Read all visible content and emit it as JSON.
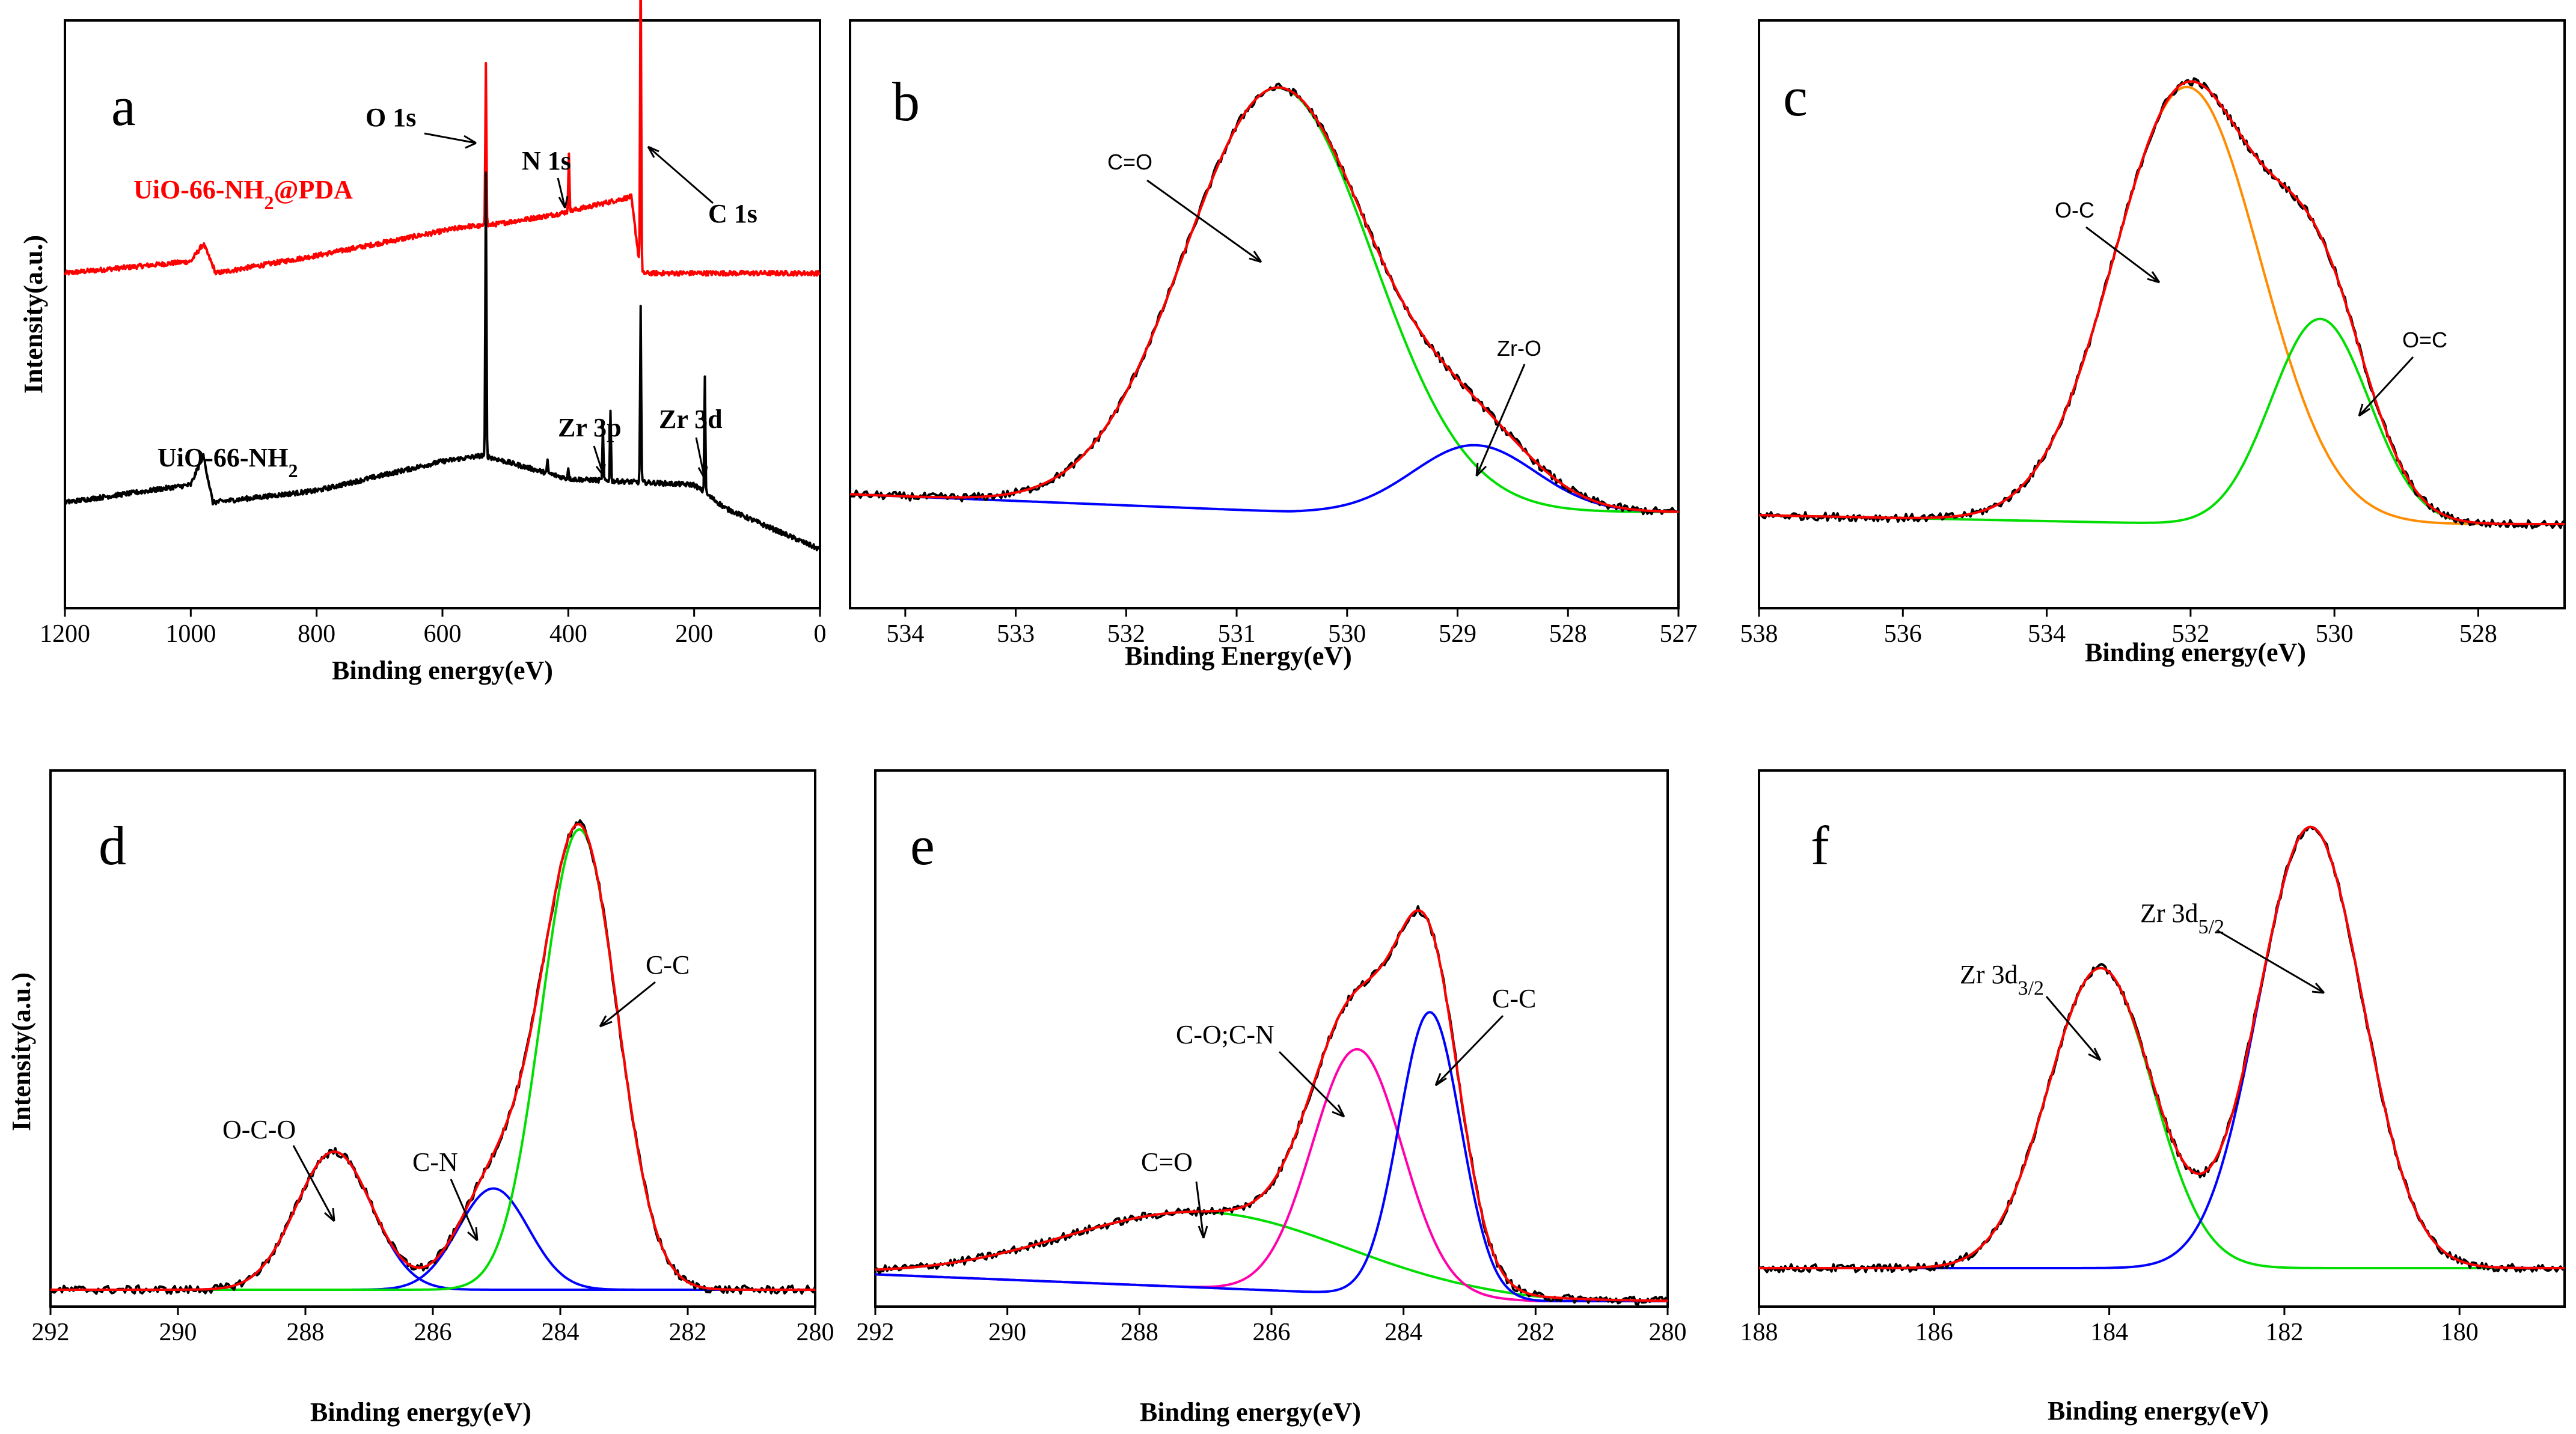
{
  "colors": {
    "raw": "#000000",
    "fit": "#ff0000",
    "green": "#00dd00",
    "blue": "#0000ff",
    "orange": "#ff8c00",
    "magenta": "#ff00aa",
    "red_series": "#ff0000"
  },
  "chart_data": [
    {
      "id": "a",
      "panel_label": "a",
      "type": "line",
      "xlabel": "Binding energy(eV)",
      "ylabel": "Intensity(a.u.)",
      "xlim": [
        1200,
        0
      ],
      "xticks": [
        1200,
        1000,
        800,
        600,
        400,
        200,
        0
      ],
      "series": [
        {
          "name": "UiO-66-NH2@PDA",
          "color": "#ff0000",
          "offset": 0.57,
          "baseline": [
            [
              1200,
              0.0
            ],
            [
              1000,
              0.02
            ],
            [
              980,
              0.05
            ],
            [
              960,
              0.0
            ],
            [
              800,
              0.03
            ],
            [
              560,
              0.08
            ],
            [
              535,
              0.08
            ],
            [
              420,
              0.1
            ],
            [
              300,
              0.13
            ],
            [
              285,
              0.0
            ],
            [
              100,
              0.0
            ],
            [
              0,
              0.0
            ]
          ],
          "peaks": [
            {
              "x": 531,
              "h": 0.28,
              "w": 2
            },
            {
              "x": 399,
              "h": 0.1,
              "w": 2
            },
            {
              "x": 285,
              "h": 0.57,
              "w": 2
            }
          ]
        },
        {
          "name": "UiO-66-NH2",
          "color": "#000000",
          "offset": 0.16,
          "baseline": [
            [
              1200,
              0.02
            ],
            [
              1000,
              0.05
            ],
            [
              980,
              0.1
            ],
            [
              965,
              0.02
            ],
            [
              800,
              0.04
            ],
            [
              600,
              0.09
            ],
            [
              535,
              0.1
            ],
            [
              400,
              0.06
            ],
            [
              200,
              0.05
            ],
            [
              150,
              0.01
            ],
            [
              0,
              -0.06
            ]
          ],
          "peaks": [
            {
              "x": 531,
              "h": 0.48,
              "w": 2
            },
            {
              "x": 433,
              "h": 0.02,
              "w": 2
            },
            {
              "x": 400,
              "h": 0.02,
              "w": 2
            },
            {
              "x": 345,
              "h": 0.09,
              "w": 2
            },
            {
              "x": 333,
              "h": 0.12,
              "w": 2
            },
            {
              "x": 285,
              "h": 0.3,
              "w": 2
            },
            {
              "x": 183,
              "h": 0.2,
              "w": 2
            }
          ]
        }
      ],
      "annotations": [
        {
          "text": "UiO-66-NH",
          "sub": "2",
          "suffix": "@PDA",
          "color": "#ff0000",
          "bold": true
        },
        {
          "text": "UiO-66-NH",
          "sub": "2",
          "suffix": "",
          "color": "#000000",
          "bold": true
        },
        {
          "text": "O 1s",
          "bold": true
        },
        {
          "text": "N 1s",
          "bold": true
        },
        {
          "text": "C 1s",
          "bold": true
        },
        {
          "text": "Zr 3p",
          "bold": true
        },
        {
          "text": "Zr 3d",
          "bold": true
        }
      ]
    },
    {
      "id": "b",
      "panel_label": "b",
      "type": "line",
      "xlabel": "Binding Energy(eV)",
      "ylabel": "",
      "xlim": [
        534.5,
        527
      ],
      "xticks": [
        534,
        533,
        532,
        531,
        530,
        529,
        528,
        527
      ],
      "baseline": {
        "type": "linear",
        "x0": 534.5,
        "y0": 0.04,
        "x1": 530.5,
        "y1": 0.0
      },
      "components": [
        {
          "name": "C=O",
          "color": "#00dd00",
          "center": 530.62,
          "height": 0.95,
          "fwhm": 2.0
        },
        {
          "name": "Zr-O",
          "color": "#0000ff",
          "center": 528.85,
          "height": 0.15,
          "fwhm": 1.3
        }
      ],
      "fit_color": "#ff0000",
      "annotations": [
        {
          "text": "C=O"
        },
        {
          "text": "Zr-O"
        }
      ]
    },
    {
      "id": "c",
      "panel_label": "c",
      "type": "line",
      "xlabel": "Binding energy(eV)",
      "ylabel": "",
      "xlim": [
        538,
        526.8
      ],
      "xticks": [
        538,
        536,
        534,
        532,
        530,
        528
      ],
      "baseline": {
        "type": "linear",
        "x0": 538,
        "y0": 0.02,
        "x1": 532.0,
        "y1": 0.0
      },
      "components": [
        {
          "name": "O-C",
          "color": "#ff8c00",
          "center": 532.05,
          "height": 0.98,
          "fwhm": 2.4
        },
        {
          "name": "O=C",
          "color": "#00dd00",
          "center": 530.2,
          "height": 0.46,
          "fwhm": 1.6
        }
      ],
      "fit_color": "#ff0000",
      "annotations": [
        {
          "text": "O-C"
        },
        {
          "text": "O=C"
        }
      ]
    },
    {
      "id": "d",
      "panel_label": "d",
      "type": "line",
      "xlabel": "Binding energy(eV)",
      "ylabel": "Intensity(a.u.)",
      "xlim": [
        292,
        280
      ],
      "xticks": [
        292,
        290,
        288,
        286,
        284,
        282,
        280
      ],
      "baseline": {
        "type": "linear",
        "x0": 292,
        "y0": 0.0,
        "x1": 284,
        "y1": 0.0
      },
      "components": [
        {
          "name": "O-C-O",
          "color": "#0000ff",
          "center": 287.55,
          "height": 0.3,
          "fwhm": 1.4
        },
        {
          "name": "C-N",
          "color": "#0000ff",
          "center": 285.05,
          "height": 0.22,
          "fwhm": 1.3
        },
        {
          "name": "C-C",
          "color": "#00dd00",
          "center": 283.7,
          "height": 1.0,
          "fwhm": 1.4
        }
      ],
      "fit_color": "#ff0000",
      "annotations": [
        {
          "text": "O-C-O"
        },
        {
          "text": "C-N"
        },
        {
          "text": "C-C"
        }
      ]
    },
    {
      "id": "e",
      "panel_label": "e",
      "type": "line",
      "xlabel": "Binding energy(eV)",
      "ylabel": "",
      "xlim": [
        292,
        280
      ],
      "xticks": [
        292,
        290,
        288,
        286,
        284,
        282,
        280
      ],
      "baseline": {
        "type": "linear",
        "x0": 292,
        "y0": 0.04,
        "x1": 282,
        "y1": -0.02
      },
      "components": [
        {
          "name": "C=O",
          "color": "#00dd00",
          "center": 287.0,
          "height": 0.17,
          "fwhm": 5.0
        },
        {
          "name": "C-O;C-N",
          "color": "#ff00aa",
          "center": 284.7,
          "height": 0.55,
          "fwhm": 1.6
        },
        {
          "name": "C-C",
          "color": "#0000ff",
          "center": 283.6,
          "height": 0.64,
          "fwhm": 1.1
        }
      ],
      "fit_color": "#ff0000",
      "annotations": [
        {
          "text": "C=O"
        },
        {
          "text": "C-O;C-N"
        },
        {
          "text": "C-C"
        }
      ]
    },
    {
      "id": "f",
      "panel_label": "f",
      "type": "line",
      "xlabel": "Binding energy(eV)",
      "ylabel": "",
      "xlim": [
        188,
        178.8
      ],
      "xticks": [
        188,
        186,
        184,
        182,
        180
      ],
      "baseline": {
        "type": "linear",
        "x0": 188,
        "y0": 0.0,
        "x1": 178.8,
        "y1": 0.0
      },
      "components": [
        {
          "name": "Zr 3d3/2",
          "color": "#00dd00",
          "center": 184.1,
          "height": 0.68,
          "fwhm": 1.4
        },
        {
          "name": "Zr 3d5/2",
          "color": "#0000ff",
          "center": 181.7,
          "height": 1.0,
          "fwhm": 1.4
        }
      ],
      "fit_color": "#ff0000",
      "annotations": [
        {
          "text": "Zr 3d",
          "sub": "3/2"
        },
        {
          "text": "Zr 3d",
          "sub": "5/2"
        }
      ]
    }
  ]
}
